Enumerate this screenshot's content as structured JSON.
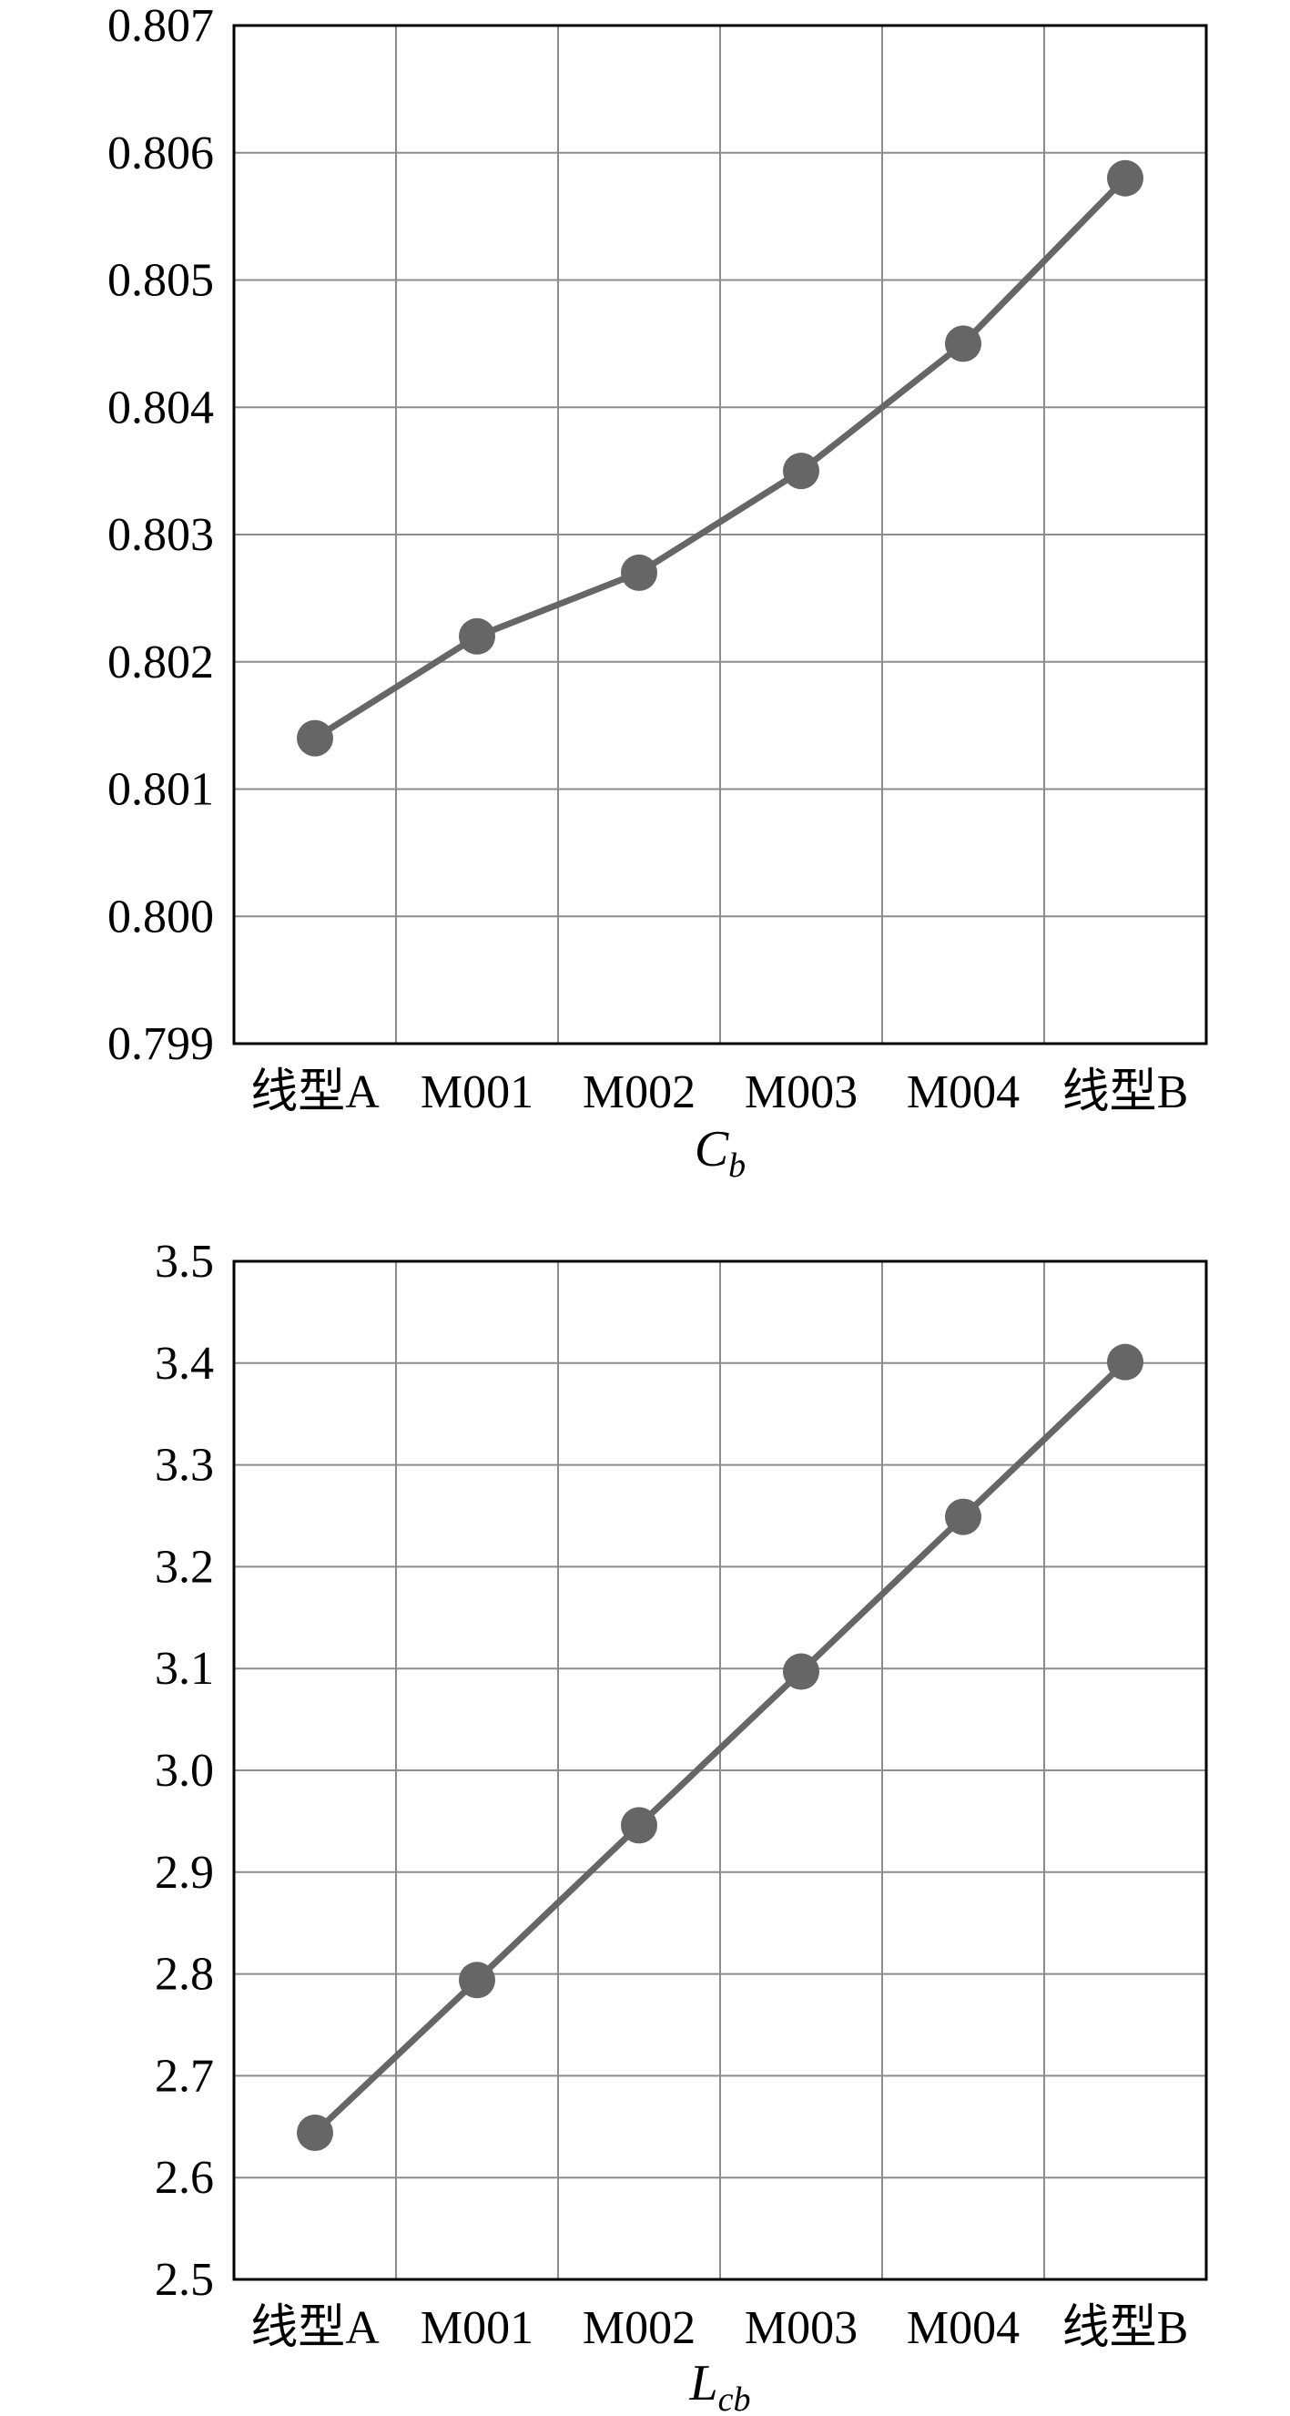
{
  "chart_data": [
    {
      "type": "line",
      "categories": [
        "线型A",
        "M001",
        "M002",
        "M003",
        "M004",
        "线型B"
      ],
      "series": [
        {
          "values": [
            0.8014,
            0.8022,
            0.8027,
            0.8035,
            0.8045,
            0.8058
          ]
        }
      ],
      "xlabel": {
        "main": "C",
        "sub": "b"
      },
      "ylabel": "",
      "ylim": [
        0.799,
        0.807
      ],
      "yticks": [
        "0.799",
        "0.800",
        "0.801",
        "0.802",
        "0.803",
        "0.804",
        "0.805",
        "0.806",
        "0.807"
      ],
      "grid": true,
      "color": "#666666"
    },
    {
      "type": "line",
      "categories": [
        "线型A",
        "M001",
        "M002",
        "M003",
        "M004",
        "线型B"
      ],
      "series": [
        {
          "values": [
            2.644,
            2.794,
            2.946,
            3.097,
            3.249,
            3.401
          ]
        }
      ],
      "xlabel": {
        "main": "L",
        "sub": "cb"
      },
      "ylabel": "",
      "ylim": [
        2.5,
        3.5
      ],
      "yticks": [
        "2.5",
        "2.6",
        "2.7",
        "2.8",
        "2.9",
        "3.0",
        "3.1",
        "3.2",
        "3.3",
        "3.4",
        "3.5"
      ],
      "grid": true,
      "color": "#666666"
    }
  ]
}
